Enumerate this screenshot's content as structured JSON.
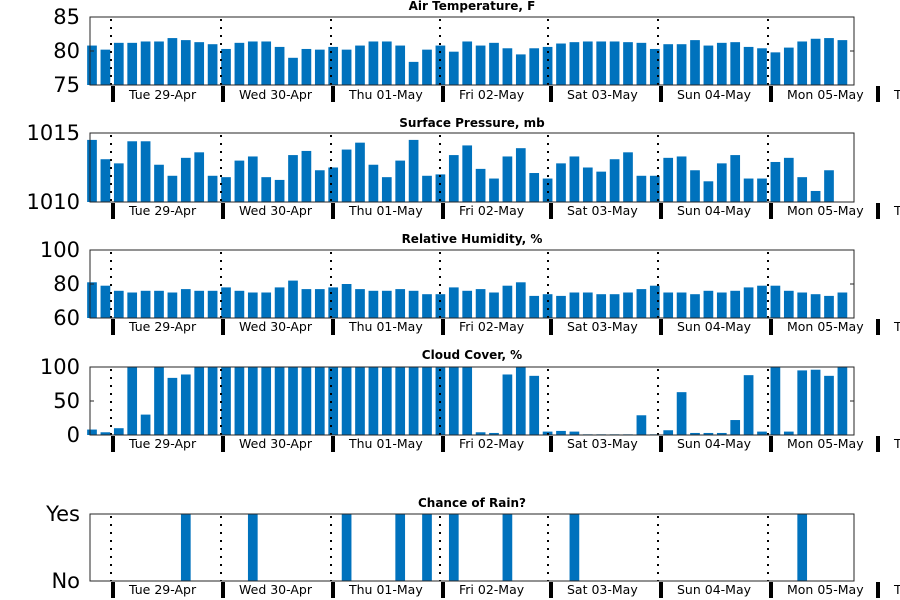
{
  "chart_data": [
    {
      "type": "bar",
      "title": "Air Temperature, F",
      "ylim": [
        75,
        85
      ],
      "yticks": [
        "75",
        "80",
        "85"
      ],
      "ytick_values": [
        75,
        80,
        85
      ],
      "day_labels": [
        "Tue 29-Apr",
        "Wed 30-Apr",
        "Thu 01-May",
        "Fri 02-May",
        "Sat 03-May",
        "Sun 04-May",
        "Mon 05-May",
        "Tu"
      ],
      "values": [
        80.8,
        80.2,
        81.2,
        81.2,
        81.4,
        81.4,
        81.9,
        81.6,
        81.3,
        81.0,
        80.3,
        81.2,
        81.4,
        81.4,
        80.6,
        79.0,
        80.3,
        80.2,
        80.6,
        80.2,
        80.8,
        81.4,
        81.4,
        80.8,
        78.4,
        80.2,
        80.8,
        79.9,
        81.4,
        80.8,
        81.2,
        80.4,
        79.5,
        80.4,
        80.6,
        81.1,
        81.3,
        81.4,
        81.4,
        81.4,
        81.3,
        81.2,
        80.3,
        81.0,
        81.0,
        81.6,
        80.8,
        81.2,
        81.3,
        80.6,
        80.4,
        79.8,
        80.5,
        81.4,
        81.8,
        81.9,
        81.6
      ]
    },
    {
      "type": "bar",
      "title": "Surface Pressure, mb",
      "ylim": [
        1010,
        1015
      ],
      "yticks": [
        "1010",
        "1015"
      ],
      "ytick_values": [
        1010,
        1015
      ],
      "day_labels": [
        "Tue 29-Apr",
        "Wed 30-Apr",
        "Thu 01-May",
        "Fri 02-May",
        "Sat 03-May",
        "Sun 04-May",
        "Mon 05-May",
        "Tu"
      ],
      "values": [
        1014.5,
        1013.1,
        1012.8,
        1014.4,
        1014.4,
        1012.7,
        1011.9,
        1013.2,
        1013.6,
        1011.9,
        1011.8,
        1013.0,
        1013.3,
        1011.8,
        1011.6,
        1013.4,
        1013.7,
        1012.3,
        1012.5,
        1013.8,
        1014.3,
        1012.7,
        1011.8,
        1013.0,
        1014.5,
        1011.9,
        1012.0,
        1013.4,
        1014.1,
        1012.4,
        1011.7,
        1013.3,
        1013.9,
        1012.1,
        1011.7,
        1012.8,
        1013.3,
        1012.5,
        1012.2,
        1013.1,
        1013.6,
        1011.9,
        1011.9,
        1013.2,
        1013.3,
        1012.3,
        1011.5,
        1012.8,
        1013.4,
        1011.7,
        1011.7,
        1012.9,
        1013.2,
        1011.8,
        1010.8,
        1012.3
      ]
    },
    {
      "type": "bar",
      "title": "Relative Humidity, %",
      "ylim": [
        60,
        100
      ],
      "yticks": [
        "60",
        "80",
        "100"
      ],
      "ytick_values": [
        60,
        80,
        100
      ],
      "day_labels": [
        "Tue 29-Apr",
        "Wed 30-Apr",
        "Thu 01-May",
        "Fri 02-May",
        "Sat 03-May",
        "Sun 04-May",
        "Mon 05-May",
        "Tu"
      ],
      "values": [
        81,
        79,
        76,
        75,
        76,
        76,
        75,
        77,
        76,
        76,
        78,
        76,
        75,
        75,
        78,
        82,
        77,
        77,
        78,
        80,
        77,
        76,
        76,
        77,
        76,
        74,
        74,
        78,
        76,
        77,
        75,
        79,
        81,
        73,
        74,
        73,
        75,
        75,
        74,
        74,
        75,
        77,
        79,
        75,
        75,
        74,
        76,
        75,
        76,
        78,
        79,
        79,
        76,
        75,
        74,
        73,
        75
      ]
    },
    {
      "type": "bar",
      "title": "Cloud Cover, %",
      "ylim": [
        0,
        100
      ],
      "yticks": [
        "0",
        "50",
        "100"
      ],
      "ytick_values": [
        0,
        50,
        100
      ],
      "day_labels": [
        "Tue 29-Apr",
        "Wed 30-Apr",
        "Thu 01-May",
        "Fri 02-May",
        "Sat 03-May",
        "Sun 04-May",
        "Mon 05-May",
        "Tu"
      ],
      "values": [
        8,
        4,
        10,
        100,
        30,
        100,
        84,
        89,
        100,
        100,
        100,
        100,
        100,
        100,
        100,
        100,
        100,
        100,
        100,
        100,
        100,
        100,
        100,
        100,
        100,
        100,
        100,
        100,
        100,
        4,
        3,
        89,
        100,
        87,
        5,
        6,
        5,
        1,
        1,
        1,
        1,
        29,
        1,
        7,
        63,
        3,
        3,
        3,
        22,
        88,
        5,
        100,
        5,
        95,
        96,
        87,
        100
      ]
    },
    {
      "type": "bar",
      "title": "Chance of Rain?",
      "ylim": [
        0,
        1
      ],
      "yticks": [
        "No",
        "Yes"
      ],
      "ytick_values": [
        0,
        1
      ],
      "day_labels": [
        "Tue 29-Apr",
        "Wed 30-Apr",
        "Thu 01-May",
        "Fri 02-May",
        "Sat 03-May",
        "Sun 04-May",
        "Mon 05-May",
        "Tu"
      ],
      "values": [
        0,
        0,
        0,
        0,
        0,
        0,
        0,
        1,
        0,
        0,
        0,
        0,
        1,
        0,
        0,
        0,
        0,
        0,
        0,
        1,
        0,
        0,
        0,
        1,
        0,
        1,
        0,
        1,
        0,
        0,
        0,
        1,
        0,
        0,
        0,
        0,
        1,
        0,
        0,
        0,
        0,
        0,
        0,
        0,
        0,
        0,
        0,
        0,
        0,
        0,
        0,
        0,
        0,
        1,
        0,
        0,
        0
      ]
    }
  ]
}
